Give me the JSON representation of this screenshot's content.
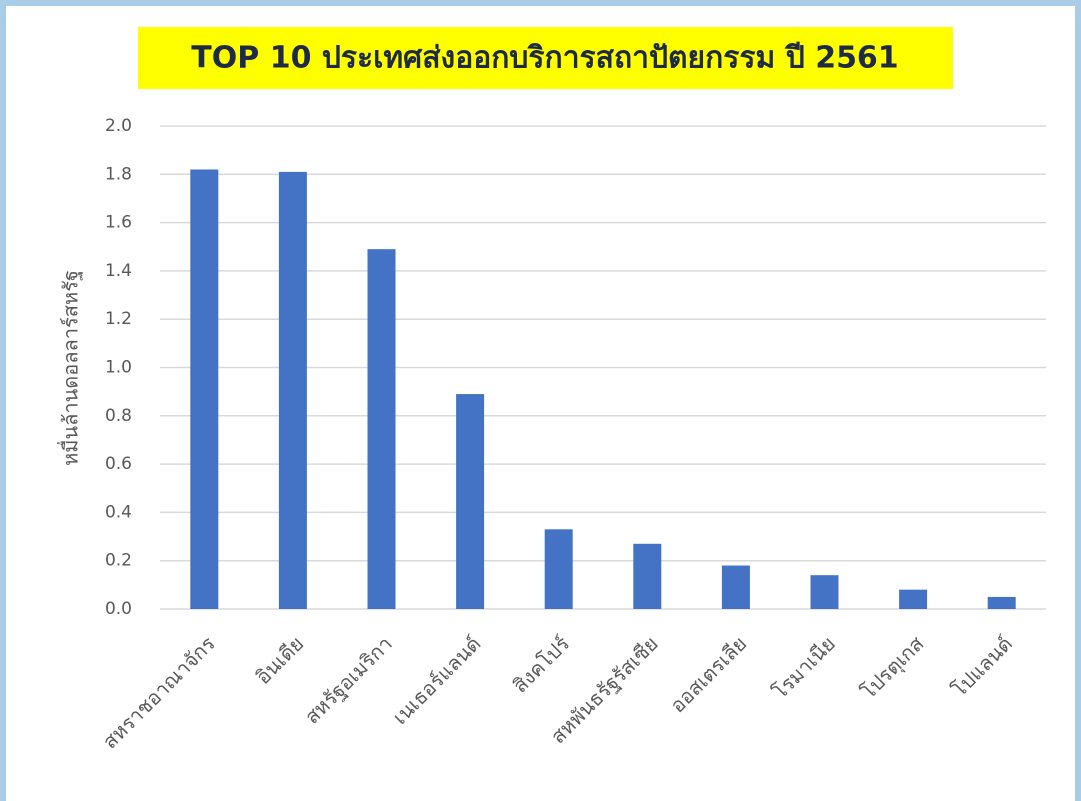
{
  "chart_data": {
    "type": "bar",
    "title": "TOP 10 ประเทศส่งออกบริการสถาปัตยกรรม ปี 2561",
    "y_label": "หมื่นล้านดอลลาร์สหรัฐ",
    "categories": [
      "สหราชอาณาจักร",
      "อินเดีย",
      "สหรัฐอเมริกา",
      "เนเธอร์แลนด์",
      "สิงคโปร์",
      "สหพันธรัฐรัสเซีย",
      "ออสเตรเลีย",
      "โรมาเนีย",
      "โปรตุเกส",
      "โปแลนด์"
    ],
    "values": [
      1.82,
      1.81,
      1.49,
      0.89,
      0.33,
      0.27,
      0.18,
      0.14,
      0.08,
      0.05
    ],
    "color": "#4472c4",
    "ylim": [
      0,
      2
    ],
    "yticks": [
      {
        "value": 0,
        "label": "0.0"
      },
      0.2,
      0.4,
      0.6,
      0.8,
      {
        "value": 1,
        "label": "1.0"
      },
      1.2,
      1.4,
      1.6,
      1.8,
      {
        "value": 2,
        "label": "2.0"
      }
    ],
    "grid": true
  }
}
